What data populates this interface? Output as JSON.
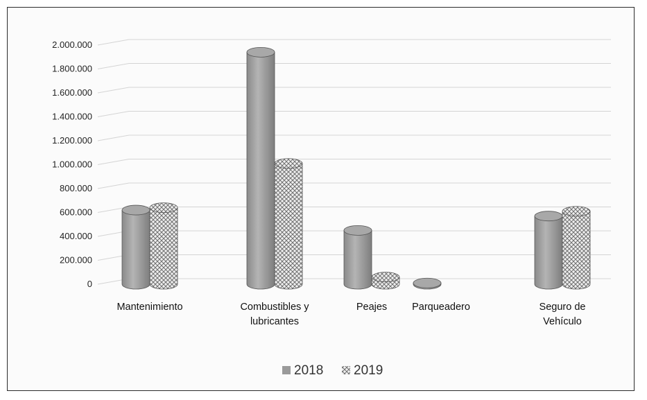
{
  "chart_data": {
    "type": "bar",
    "categories": [
      [
        "Mantenimiento"
      ],
      [
        "Combustibles y",
        "lubricantes"
      ],
      [
        "Peajes"
      ],
      [
        "Parqueadero"
      ],
      [
        "Seguro de",
        "Vehículo"
      ]
    ],
    "series": [
      {
        "name": "2018",
        "values": [
          620000,
          1940000,
          450000,
          10000,
          570000
        ]
      },
      {
        "name": "2019",
        "values": [
          640000,
          1010000,
          60000,
          null,
          610000
        ]
      }
    ],
    "ylim": [
      0,
      2000000
    ],
    "yticks": [
      0,
      200000,
      400000,
      600000,
      800000,
      1000000,
      1200000,
      1400000,
      1600000,
      1800000,
      2000000
    ],
    "ytick_labels": [
      "0",
      "200.000",
      "400.000",
      "600.000",
      "800.000",
      "1.000.000",
      "1.200.000",
      "1.400.000",
      "1.600.000",
      "1.800.000",
      "2.000.000"
    ],
    "grid": true,
    "legend_position": "bottom",
    "style": "3d-cylinder",
    "colors": {
      "2018": "#9a9a9a",
      "2019": "#d8d8d8",
      "grid": "#d4d4d4",
      "frame": "#2a2a2a"
    }
  }
}
